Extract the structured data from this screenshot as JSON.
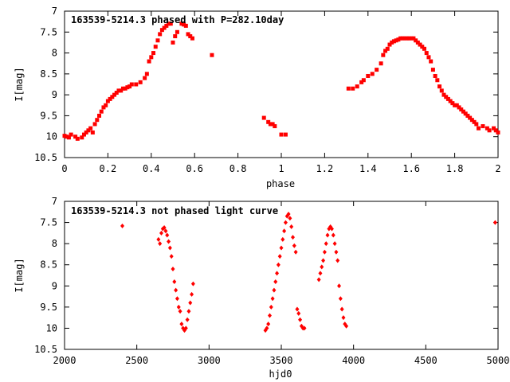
{
  "chart_data": [
    {
      "type": "scatter",
      "title": "163539-5214.3 phased with P=282.10day",
      "xlabel": "phase",
      "ylabel": "I[mag]",
      "xlim": [
        0,
        2
      ],
      "ylim": [
        10.5,
        7
      ],
      "y_inverted": true,
      "grid": false,
      "xticks": [
        0,
        0.2,
        0.4,
        0.6,
        0.8,
        1,
        1.2,
        1.4,
        1.6,
        1.8,
        2
      ],
      "xtick_labels": [
        "0",
        "0.2",
        "0.4",
        "0.6",
        "0.8",
        "1",
        "1.2",
        "1.4",
        "1.6",
        "1.8",
        "2"
      ],
      "yticks": [
        7,
        7.5,
        8,
        8.5,
        9,
        9.5,
        10,
        10.5
      ],
      "ytick_labels": [
        "7",
        "7.5",
        "8",
        "8.5",
        "9",
        "9.5",
        "10",
        "10.5"
      ],
      "marker_color": "#ff0000",
      "series": [
        {
          "x": [
            0.0,
            0.01,
            0.02,
            0.03,
            0.05,
            0.06,
            0.08,
            0.09,
            0.1,
            0.11,
            0.12,
            0.13,
            0.14,
            0.15,
            0.16,
            0.17,
            0.18,
            0.19,
            0.2,
            0.21,
            0.22,
            0.23,
            0.24,
            0.25,
            0.26,
            0.27,
            0.28,
            0.29,
            0.3,
            0.31,
            0.33,
            0.35,
            0.37,
            0.38,
            0.39,
            0.4,
            0.41,
            0.42,
            0.43,
            0.44,
            0.45,
            0.46,
            0.47,
            0.48,
            0.49,
            0.5,
            0.51,
            0.52,
            0.54,
            0.55,
            0.56,
            0.57,
            0.58,
            0.59,
            0.68,
            0.92,
            0.94,
            0.95,
            0.96,
            0.97,
            1.0,
            1.02,
            1.31,
            1.33,
            1.35,
            1.37,
            1.38,
            1.4,
            1.42,
            1.44,
            1.46,
            1.47,
            1.48,
            1.49,
            1.5,
            1.51,
            1.52,
            1.53,
            1.54,
            1.55,
            1.56,
            1.57,
            1.58,
            1.59,
            1.6,
            1.61,
            1.62,
            1.63,
            1.64,
            1.65,
            1.66,
            1.67,
            1.68,
            1.69,
            1.7,
            1.71,
            1.72,
            1.73,
            1.74,
            1.75,
            1.76,
            1.77,
            1.78,
            1.79,
            1.8,
            1.81,
            1.82,
            1.83,
            1.84,
            1.85,
            1.86,
            1.87,
            1.88,
            1.89,
            1.9,
            1.91,
            1.93,
            1.95,
            1.96,
            1.98,
            1.99,
            2.0
          ],
          "y": [
            9.98,
            10.0,
            10.02,
            9.95,
            10.0,
            10.05,
            10.02,
            9.95,
            9.9,
            9.85,
            9.8,
            9.9,
            9.7,
            9.6,
            9.5,
            9.4,
            9.3,
            9.25,
            9.15,
            9.1,
            9.05,
            9.0,
            8.95,
            8.9,
            8.9,
            8.85,
            8.85,
            8.82,
            8.8,
            8.75,
            8.75,
            8.7,
            8.6,
            8.5,
            8.2,
            8.1,
            8.0,
            7.85,
            7.7,
            7.55,
            7.45,
            7.4,
            7.35,
            7.3,
            7.3,
            7.75,
            7.6,
            7.5,
            7.3,
            7.32,
            7.35,
            7.55,
            7.6,
            7.65,
            8.05,
            9.55,
            9.65,
            9.7,
            9.7,
            9.75,
            9.95,
            9.95,
            8.85,
            8.85,
            8.8,
            8.7,
            8.65,
            8.55,
            8.5,
            8.4,
            8.25,
            8.05,
            7.95,
            7.9,
            7.8,
            7.75,
            7.72,
            7.7,
            7.68,
            7.65,
            7.65,
            7.65,
            7.65,
            7.65,
            7.65,
            7.65,
            7.7,
            7.75,
            7.8,
            7.85,
            7.9,
            8.0,
            8.1,
            8.2,
            8.4,
            8.55,
            8.65,
            8.8,
            8.9,
            9.0,
            9.05,
            9.1,
            9.15,
            9.2,
            9.25,
            9.25,
            9.3,
            9.35,
            9.4,
            9.45,
            9.5,
            9.55,
            9.6,
            9.65,
            9.7,
            9.8,
            9.75,
            9.8,
            9.85,
            9.8,
            9.85,
            9.9
          ]
        }
      ]
    },
    {
      "type": "scatter",
      "title": "163539-5214.3 not phased light curve",
      "xlabel": "hjd0",
      "ylabel": "I[mag]",
      "xlim": [
        2000,
        5000
      ],
      "ylim": [
        10.5,
        7
      ],
      "y_inverted": true,
      "grid": false,
      "xticks": [
        2000,
        2500,
        3000,
        3500,
        4000,
        4500,
        5000
      ],
      "xtick_labels": [
        "2000",
        "2500",
        "3000",
        "3500",
        "4000",
        "4500",
        "5000"
      ],
      "yticks": [
        7,
        7.5,
        8,
        8.5,
        9,
        9.5,
        10,
        10.5
      ],
      "ytick_labels": [
        "7",
        "7.5",
        "8",
        "8.5",
        "9",
        "9.5",
        "10",
        "10.5"
      ],
      "marker_color": "#ff0000",
      "series": [
        {
          "x": [
            2400,
            2650,
            2660,
            2670,
            2680,
            2690,
            2700,
            2710,
            2720,
            2730,
            2740,
            2750,
            2760,
            2770,
            2780,
            2790,
            2800,
            2810,
            2820,
            2830,
            2840,
            2850,
            2860,
            2870,
            2880,
            2890,
            3390,
            3400,
            3410,
            3420,
            3430,
            3440,
            3450,
            3460,
            3470,
            3480,
            3490,
            3500,
            3510,
            3520,
            3530,
            3540,
            3550,
            3560,
            3570,
            3580,
            3590,
            3600,
            3610,
            3620,
            3630,
            3640,
            3650,
            3660,
            3760,
            3770,
            3780,
            3790,
            3800,
            3810,
            3820,
            3830,
            3840,
            3850,
            3860,
            3870,
            3880,
            3890,
            3900,
            3910,
            3920,
            3930,
            3940,
            3950,
            4980
          ],
          "y": [
            7.58,
            7.9,
            8.0,
            7.75,
            7.65,
            7.62,
            7.7,
            7.8,
            7.95,
            8.1,
            8.3,
            8.6,
            8.9,
            9.1,
            9.3,
            9.5,
            9.6,
            9.9,
            10.0,
            10.05,
            10.0,
            9.8,
            9.6,
            9.4,
            9.2,
            8.95,
            10.05,
            10.0,
            9.9,
            9.7,
            9.5,
            9.3,
            9.1,
            8.9,
            8.7,
            8.5,
            8.3,
            8.1,
            7.9,
            7.7,
            7.5,
            7.35,
            7.3,
            7.4,
            7.6,
            7.85,
            8.05,
            8.2,
            9.55,
            9.65,
            9.8,
            9.95,
            10.0,
            10.0,
            8.85,
            8.7,
            8.55,
            8.4,
            8.2,
            8.0,
            7.8,
            7.65,
            7.6,
            7.65,
            7.8,
            8.0,
            8.2,
            8.4,
            9.0,
            9.3,
            9.55,
            9.75,
            9.9,
            9.95,
            7.5
          ]
        }
      ]
    }
  ]
}
